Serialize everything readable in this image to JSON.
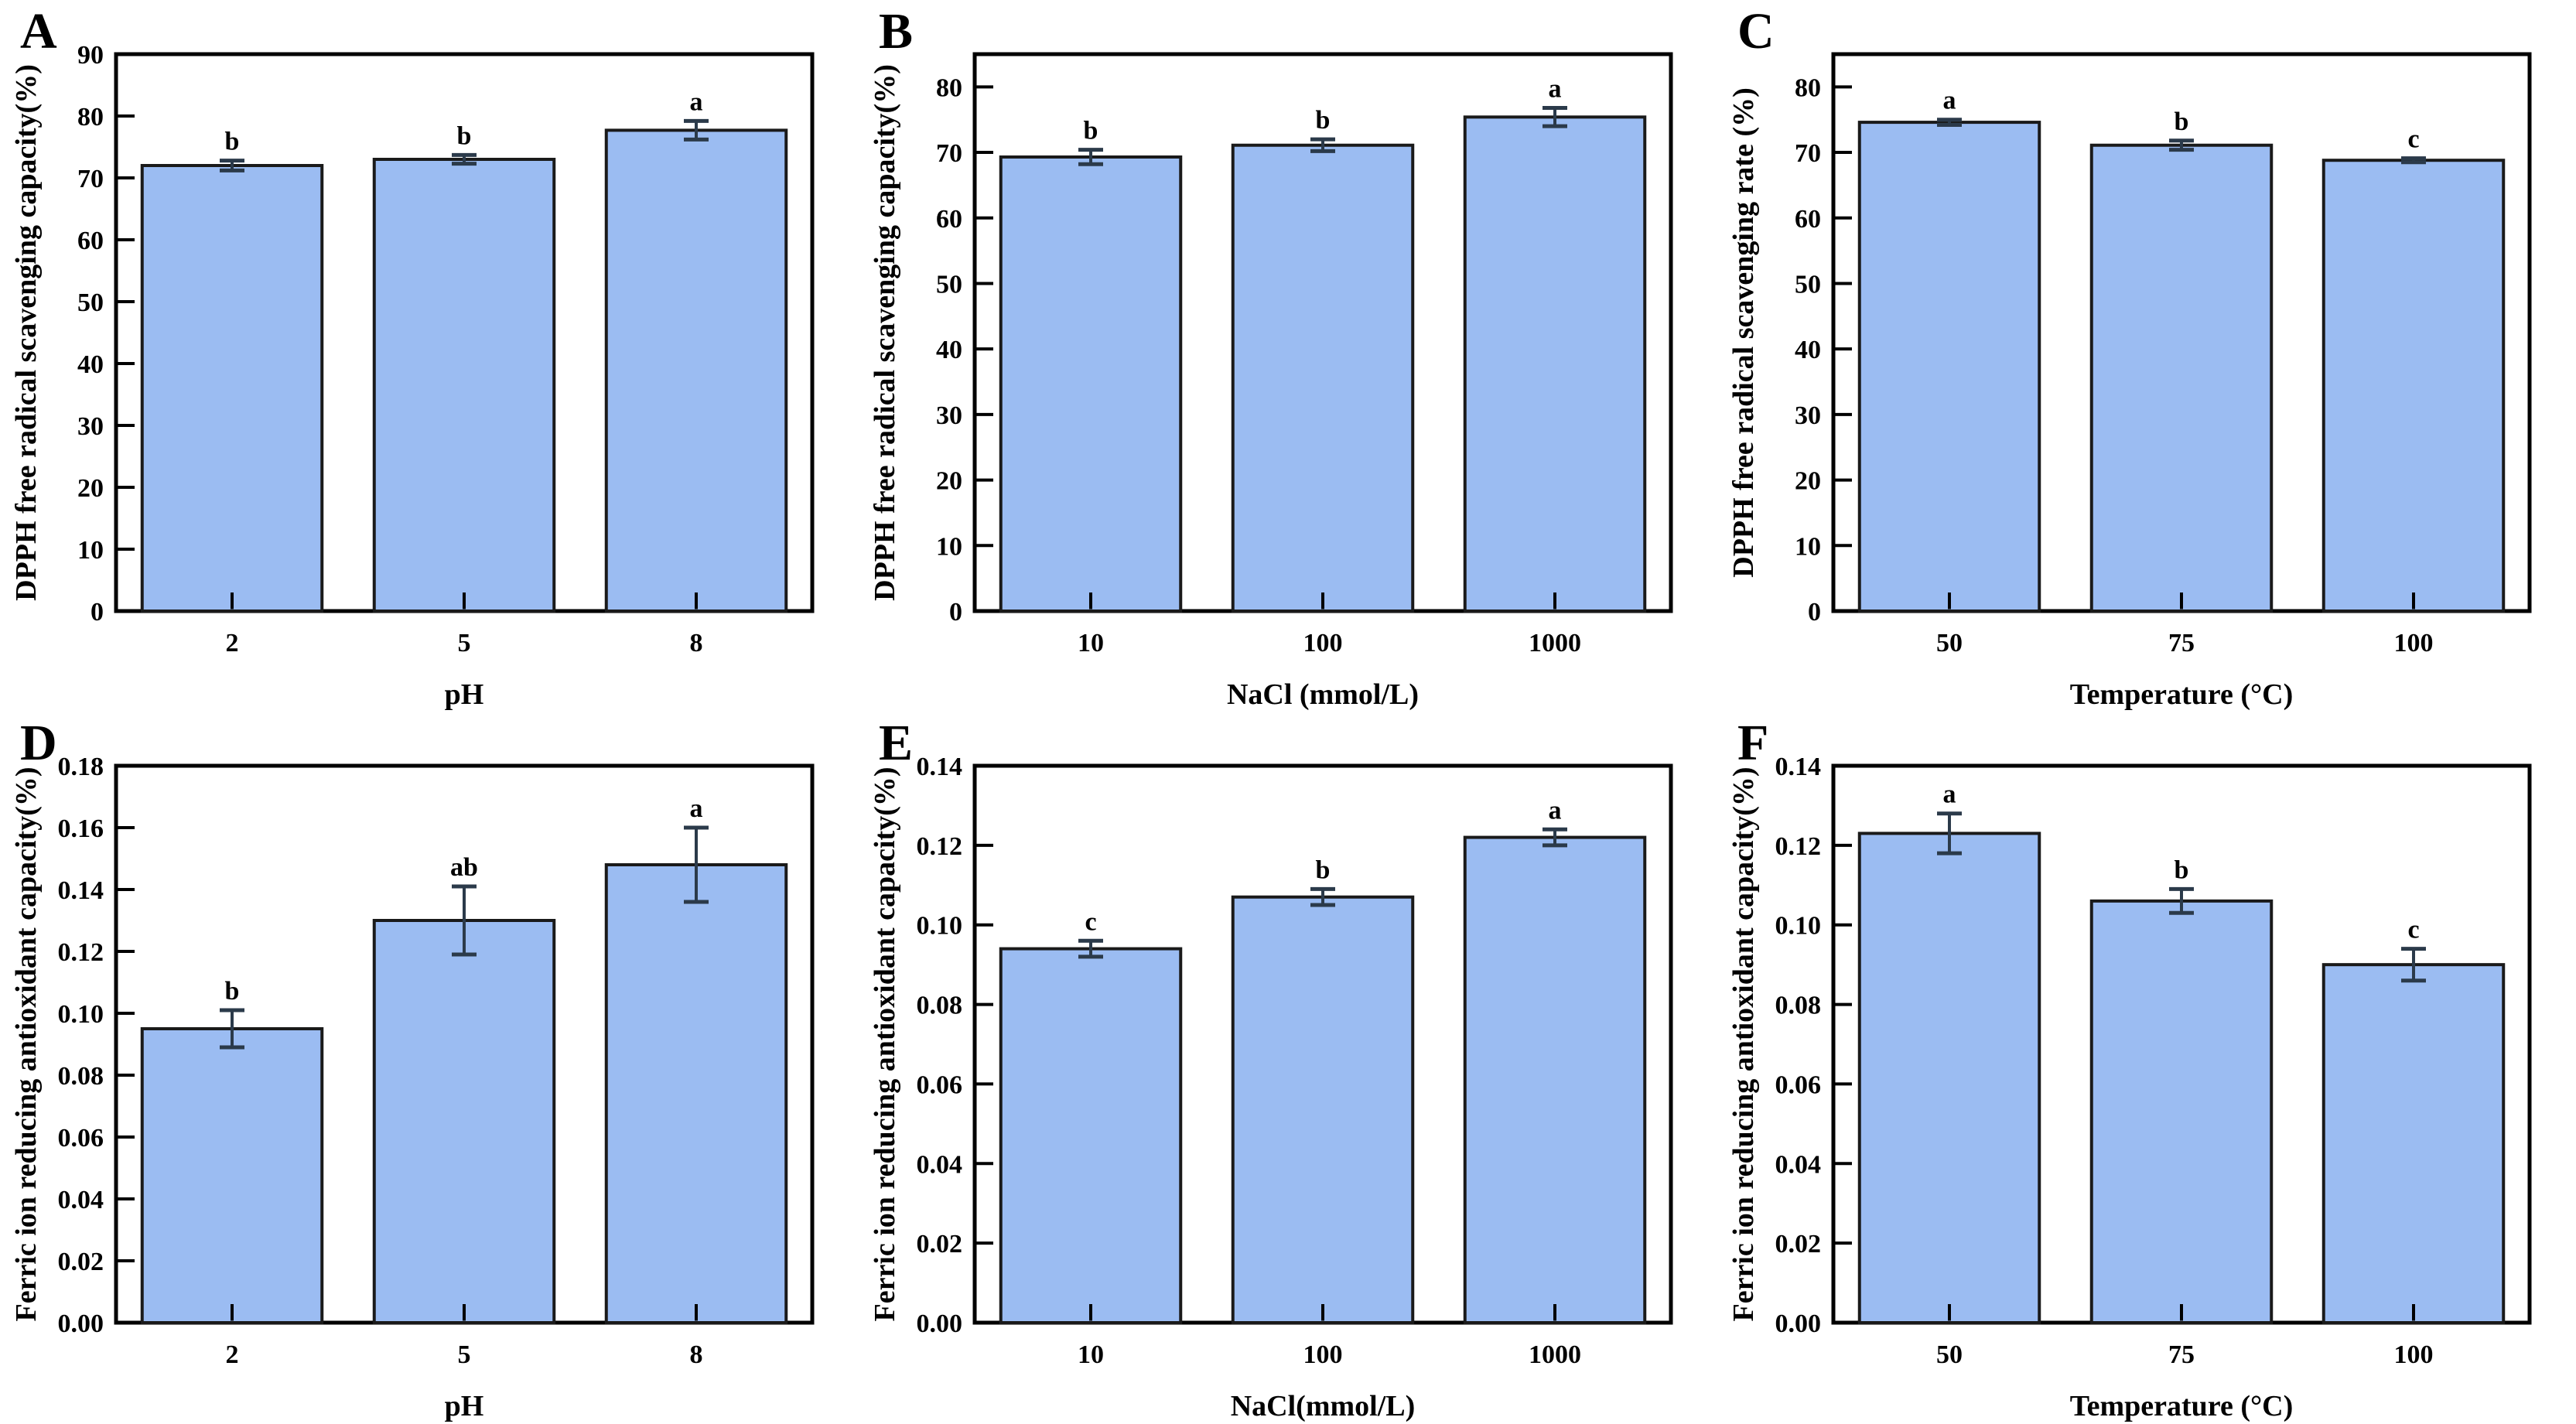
{
  "figure_title": "",
  "style": {
    "bar_fill": "#9bbcf2",
    "bar_edge": "#1a1a1a",
    "error_color": "#2b3a4a",
    "frame_color": "#000000",
    "text_color": "#000000"
  },
  "chart_data": [
    {
      "id": "A",
      "label": "A",
      "type": "bar",
      "categories": [
        "2",
        "5",
        "8"
      ],
      "values": [
        72.0,
        73.0,
        77.7
      ],
      "errors": [
        0.8,
        0.7,
        1.5
      ],
      "sig_letters": [
        "b",
        "b",
        "a"
      ],
      "xlabel": "pH",
      "ylabel": "DPPH free radical scavenging capacity(%)",
      "ylim": [
        0,
        90
      ],
      "yticks": [
        "0",
        "10",
        "20",
        "30",
        "40",
        "50",
        "60",
        "70",
        "80",
        "90"
      ],
      "grid": false,
      "legend": null
    },
    {
      "id": "B",
      "label": "B",
      "type": "bar",
      "categories": [
        "10",
        "100",
        "1000"
      ],
      "values": [
        69.3,
        71.1,
        75.4
      ],
      "errors": [
        1.1,
        0.9,
        1.4
      ],
      "sig_letters": [
        "b",
        "b",
        "a"
      ],
      "xlabel": "NaCl (mmol/L)",
      "ylabel": "DPPH free radical scavenging capacity(%)",
      "ylim": [
        0,
        85
      ],
      "yticks": [
        "0",
        "10",
        "20",
        "30",
        "40",
        "50",
        "60",
        "70",
        "80"
      ],
      "grid": false,
      "legend": null
    },
    {
      "id": "C",
      "label": "C",
      "type": "bar",
      "categories": [
        "50",
        "75",
        "100"
      ],
      "values": [
        74.6,
        71.1,
        68.8
      ],
      "errors": [
        0.4,
        0.7,
        0.3
      ],
      "sig_letters": [
        "a",
        "b",
        "c"
      ],
      "xlabel": "Temperature (°C)",
      "ylabel": "DPPH free radical scavenging rate (%)",
      "ylim": [
        0,
        85
      ],
      "yticks": [
        "0",
        "10",
        "20",
        "30",
        "40",
        "50",
        "60",
        "70",
        "80"
      ],
      "grid": false,
      "legend": null
    },
    {
      "id": "D",
      "label": "D",
      "type": "bar",
      "categories": [
        "2",
        "5",
        "8"
      ],
      "values": [
        0.095,
        0.13,
        0.148
      ],
      "errors": [
        0.006,
        0.011,
        0.012
      ],
      "sig_letters": [
        "b",
        "ab",
        "a"
      ],
      "xlabel": "pH",
      "ylabel": "Ferric ion reducing antioxidant capacity(%)",
      "ylim": [
        0,
        0.18
      ],
      "yticks": [
        "0.00",
        "0.02",
        "0.04",
        "0.06",
        "0.08",
        "0.10",
        "0.12",
        "0.14",
        "0.16",
        "0.18"
      ],
      "grid": false,
      "legend": null
    },
    {
      "id": "E",
      "label": "E",
      "type": "bar",
      "categories": [
        "10",
        "100",
        "1000"
      ],
      "values": [
        0.094,
        0.107,
        0.122
      ],
      "errors": [
        0.002,
        0.002,
        0.002
      ],
      "sig_letters": [
        "c",
        "b",
        "a"
      ],
      "xlabel": "NaCl(mmol/L)",
      "ylabel": "Ferric ion reducing antioxidant capacity(%)",
      "ylim": [
        0,
        0.14
      ],
      "yticks": [
        "0.00",
        "0.02",
        "0.04",
        "0.06",
        "0.08",
        "0.10",
        "0.12",
        "0.14"
      ],
      "grid": false,
      "legend": null
    },
    {
      "id": "F",
      "label": "F",
      "type": "bar",
      "categories": [
        "50",
        "75",
        "100"
      ],
      "values": [
        0.123,
        0.106,
        0.09
      ],
      "errors": [
        0.005,
        0.003,
        0.004
      ],
      "sig_letters": [
        "a",
        "b",
        "c"
      ],
      "xlabel": "Temperature (°C)",
      "ylabel": "Ferric ion reducing antioxidant capacity(%)",
      "ylim": [
        0,
        0.14
      ],
      "yticks": [
        "0.00",
        "0.02",
        "0.04",
        "0.06",
        "0.08",
        "0.10",
        "0.12",
        "0.14"
      ],
      "grid": false,
      "legend": null
    }
  ]
}
